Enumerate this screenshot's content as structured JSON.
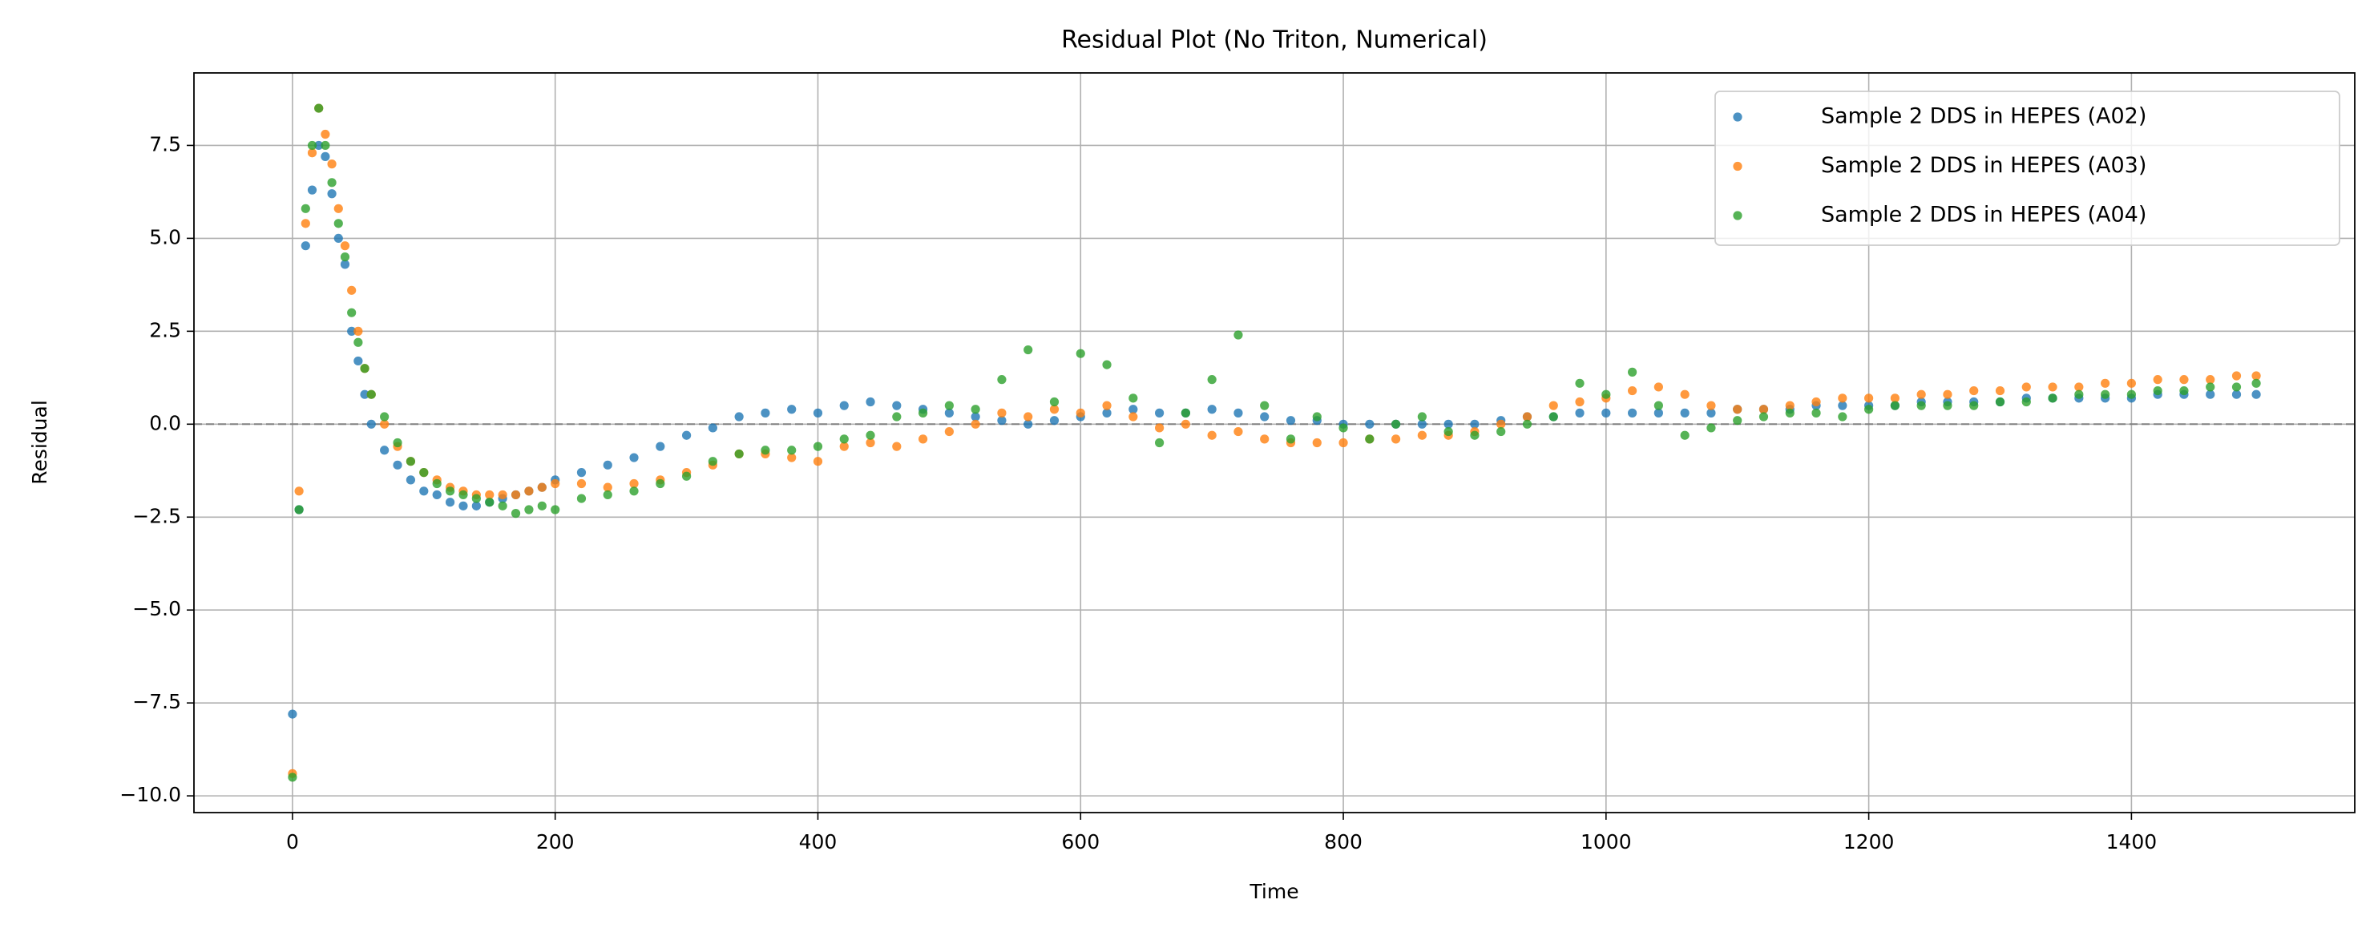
{
  "chart_data": {
    "type": "scatter",
    "title": "Residual Plot (No Triton, Numerical)",
    "xlabel": "Time",
    "ylabel": "Residual",
    "x": [
      0,
      5,
      10,
      15,
      20,
      25,
      30,
      35,
      40,
      45,
      50,
      55,
      60,
      70,
      80,
      90,
      100,
      110,
      120,
      130,
      140,
      150,
      160,
      170,
      180,
      190,
      200,
      220,
      240,
      260,
      280,
      300,
      320,
      340,
      360,
      380,
      400,
      420,
      440,
      460,
      480,
      500,
      520,
      540,
      560,
      580,
      600,
      620,
      640,
      660,
      680,
      700,
      720,
      740,
      760,
      780,
      800,
      820,
      840,
      860,
      880,
      900,
      920,
      940,
      960,
      980,
      1000,
      1020,
      1040,
      1060,
      1080,
      1100,
      1120,
      1140,
      1160,
      1180,
      1200,
      1220,
      1240,
      1260,
      1280,
      1300,
      1320,
      1340,
      1360,
      1380,
      1400,
      1420,
      1440,
      1460,
      1480,
      1495
    ],
    "series": [
      {
        "name": "Sample 2 DDS in HEPES (A02)",
        "color": "#1f77b4",
        "values": [
          -7.8,
          -2.3,
          4.8,
          6.3,
          7.5,
          7.2,
          6.2,
          5.0,
          4.3,
          2.5,
          1.7,
          0.8,
          0.0,
          -0.7,
          -1.1,
          -1.5,
          -1.8,
          -1.9,
          -2.1,
          -2.2,
          -2.2,
          -2.1,
          -2.0,
          -1.9,
          -1.8,
          -1.7,
          -1.5,
          -1.3,
          -1.1,
          -0.9,
          -0.6,
          -0.3,
          -0.1,
          0.2,
          0.3,
          0.4,
          0.3,
          0.5,
          0.6,
          0.5,
          0.4,
          0.3,
          0.2,
          0.1,
          0.0,
          0.1,
          0.2,
          0.3,
          0.4,
          0.3,
          0.3,
          0.4,
          0.3,
          0.2,
          0.1,
          0.1,
          0.0,
          0.0,
          0.0,
          0.0,
          0.0,
          0.0,
          0.1,
          0.2,
          0.2,
          0.3,
          0.3,
          0.3,
          0.3,
          0.3,
          0.3,
          0.4,
          0.4,
          0.4,
          0.5,
          0.5,
          0.5,
          0.5,
          0.6,
          0.6,
          0.6,
          0.6,
          0.7,
          0.7,
          0.7,
          0.7,
          0.7,
          0.8,
          0.8,
          0.8,
          0.8,
          0.8
        ]
      },
      {
        "name": "Sample 2 DDS in HEPES (A03)",
        "color": "#ff7f0e",
        "values": [
          -9.4,
          -1.8,
          5.4,
          7.3,
          8.5,
          7.8,
          7.0,
          5.8,
          4.8,
          3.6,
          2.5,
          1.5,
          0.8,
          0.0,
          -0.6,
          -1.0,
          -1.3,
          -1.5,
          -1.7,
          -1.8,
          -1.9,
          -1.9,
          -1.9,
          -1.9,
          -1.8,
          -1.7,
          -1.6,
          -1.6,
          -1.7,
          -1.6,
          -1.5,
          -1.3,
          -1.1,
          -0.8,
          -0.8,
          -0.9,
          -1.0,
          -0.6,
          -0.5,
          -0.6,
          -0.4,
          -0.2,
          0.0,
          0.3,
          0.2,
          0.4,
          0.3,
          0.5,
          0.2,
          -0.1,
          0.0,
          -0.3,
          -0.2,
          -0.4,
          -0.5,
          -0.5,
          -0.5,
          -0.4,
          -0.4,
          -0.3,
          -0.3,
          -0.2,
          0.0,
          0.2,
          0.5,
          0.6,
          0.7,
          0.9,
          1.0,
          0.8,
          0.5,
          0.4,
          0.4,
          0.5,
          0.6,
          0.7,
          0.7,
          0.7,
          0.8,
          0.8,
          0.9,
          0.9,
          1.0,
          1.0,
          1.0,
          1.1,
          1.1,
          1.2,
          1.2,
          1.2,
          1.3,
          1.3
        ]
      },
      {
        "name": "Sample 2 DDS in HEPES (A04)",
        "color": "#2ca02c",
        "values": [
          -9.5,
          -2.3,
          5.8,
          7.5,
          8.5,
          7.5,
          6.5,
          5.4,
          4.5,
          3.0,
          2.2,
          1.5,
          0.8,
          0.2,
          -0.5,
          -1.0,
          -1.3,
          -1.6,
          -1.8,
          -1.9,
          -2.0,
          -2.1,
          -2.2,
          -2.4,
          -2.3,
          -2.2,
          -2.3,
          -2.0,
          -1.9,
          -1.8,
          -1.6,
          -1.4,
          -1.0,
          -0.8,
          -0.7,
          -0.7,
          -0.6,
          -0.4,
          -0.3,
          0.2,
          0.3,
          0.5,
          0.4,
          1.2,
          2.0,
          0.6,
          1.9,
          1.6,
          0.7,
          -0.5,
          0.3,
          1.2,
          2.4,
          0.5,
          -0.4,
          0.2,
          -0.1,
          -0.4,
          0.0,
          0.2,
          -0.2,
          -0.3,
          -0.2,
          0.0,
          0.2,
          1.1,
          0.8,
          1.4,
          0.5,
          -0.3,
          -0.1,
          0.1,
          0.2,
          0.3,
          0.3,
          0.2,
          0.4,
          0.5,
          0.5,
          0.5,
          0.5,
          0.6,
          0.6,
          0.7,
          0.8,
          0.8,
          0.8,
          0.9,
          0.9,
          1.0,
          1.0,
          1.1
        ]
      }
    ],
    "xlim": [
      -75,
      1570
    ],
    "ylim": [
      -10.45,
      9.45
    ],
    "xticks": [
      0,
      200,
      400,
      600,
      800,
      1000,
      1200,
      1400
    ],
    "yticks": [
      {
        "value": -10,
        "label": "−10.0"
      },
      {
        "value": -7.5,
        "label": "−7.5"
      },
      {
        "value": -5,
        "label": "−5.0"
      },
      {
        "value": -2.5,
        "label": "−2.5"
      },
      {
        "value": 0,
        "label": "0.0"
      },
      2.5,
      {
        "value": 5,
        "label": "5.0"
      },
      7.5
    ],
    "axhline": 0,
    "grid": true,
    "legend": "upper right"
  }
}
